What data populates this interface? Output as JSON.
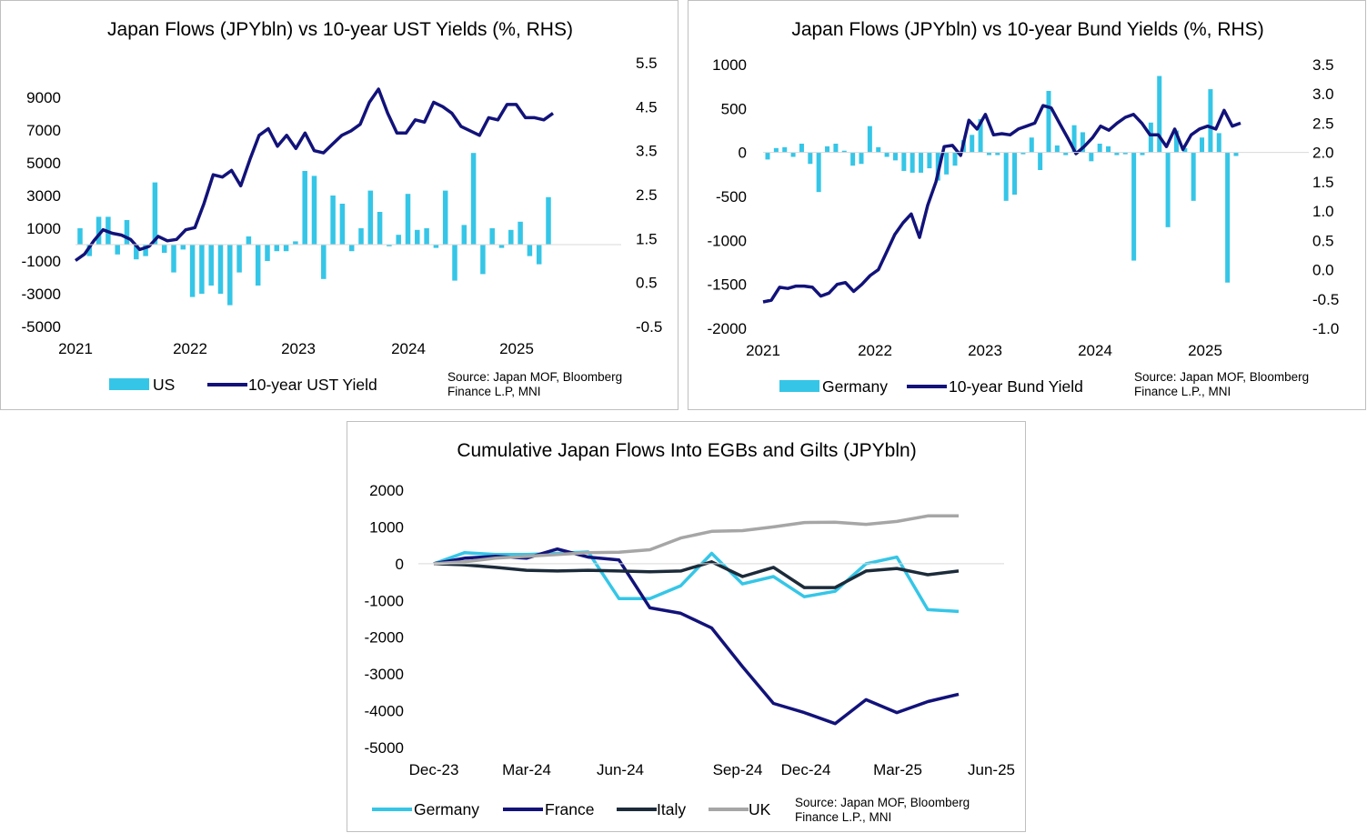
{
  "colors": {
    "cyan": "#35c6e7",
    "navy": "#12127a",
    "dark": "#1c2b3a",
    "grey": "#a6a6a6",
    "axis": "#d9d9d9"
  },
  "charts": [
    {
      "id": "us",
      "type": "bar+line",
      "title": "Japan Flows (JPYbln) vs 10-year UST Yields (%, RHS)",
      "x_labels": [
        "2021",
        "2022",
        "2023",
        "2024",
        "2025"
      ],
      "x_start": 2021.0,
      "x_end": 2026.0,
      "left_ticks": [
        "9000",
        "7000",
        "5000",
        "3000",
        "1000",
        "-1000",
        "-3000",
        "-5000"
      ],
      "right_ticks": [
        "5.5",
        "4.5",
        "3.5",
        "2.5",
        "1.5",
        "0.5",
        "-0.5"
      ],
      "ylim_left": [
        -5000,
        10000
      ],
      "ylim_right": [
        -0.5,
        5.5
      ],
      "bar_series": {
        "name": "US",
        "values": [
          1000,
          -700,
          1700,
          1700,
          -600,
          1500,
          -900,
          -700,
          3800,
          -500,
          -1700,
          -300,
          -3200,
          -3000,
          -2500,
          -3000,
          -3700,
          -1700,
          500,
          -2500,
          -1000,
          -400,
          -400,
          200,
          4500,
          4200,
          -2100,
          3000,
          2500,
          -400,
          1000,
          3300,
          2000,
          -100,
          600,
          3100,
          900,
          1000,
          -200,
          3300,
          -2200,
          1200,
          5600,
          -1800,
          1000,
          -200,
          900,
          1400,
          -700,
          -1200,
          2900
        ]
      },
      "line_series": {
        "name": "10-year UST Yield",
        "values": [
          1.0,
          1.15,
          1.45,
          1.7,
          1.62,
          1.58,
          1.48,
          1.25,
          1.32,
          1.55,
          1.45,
          1.48,
          1.7,
          1.75,
          2.3,
          2.95,
          2.9,
          3.05,
          2.7,
          3.3,
          3.85,
          4.0,
          3.6,
          3.85,
          3.55,
          3.9,
          3.5,
          3.45,
          3.65,
          3.85,
          3.95,
          4.1,
          4.6,
          4.9,
          4.35,
          3.9,
          3.9,
          4.2,
          4.15,
          4.6,
          4.5,
          4.35,
          4.05,
          3.95,
          3.85,
          4.25,
          4.2,
          4.55,
          4.55,
          4.25,
          4.25,
          4.2,
          4.35
        ]
      },
      "legend": {
        "bar": "US",
        "line": "10-year UST Yield"
      },
      "source": [
        "Source: Japan MOF, Bloomberg",
        "Finance L.P, MNI"
      ]
    },
    {
      "id": "de",
      "type": "bar+line",
      "title": "Japan Flows (JPYbln) vs 10-year Bund Yields (%, RHS)",
      "x_labels": [
        "2021",
        "2022",
        "2023",
        "2024",
        "2025"
      ],
      "x_start": 2021.0,
      "x_end": 2026.0,
      "left_ticks": [
        "1000",
        "500",
        "0",
        "-500",
        "-1000",
        "-1500",
        "-2000"
      ],
      "right_ticks": [
        "3.5",
        "3.0",
        "2.5",
        "2.0",
        "1.5",
        "1.0",
        "0.5",
        "0.0",
        "-0.5",
        "-1.0"
      ],
      "ylim_left": [
        -2000,
        1000
      ],
      "ylim_right": [
        -1.0,
        3.5
      ],
      "bar_series": {
        "name": "Germany",
        "values": [
          -80,
          50,
          60,
          -50,
          100,
          -130,
          -450,
          70,
          100,
          20,
          -150,
          -130,
          300,
          60,
          -50,
          -90,
          -210,
          -230,
          -230,
          -180,
          -320,
          -250,
          -150,
          140,
          200,
          380,
          -30,
          -30,
          -550,
          -480,
          -20,
          170,
          -200,
          700,
          80,
          -30,
          310,
          230,
          -100,
          100,
          70,
          -30,
          -20,
          -1230,
          -30,
          340,
          870,
          -850,
          250,
          50,
          -550,
          170,
          720,
          220,
          -1480,
          -40
        ]
      },
      "line_series": {
        "name": "10-year Bund Yield",
        "values": [
          -0.55,
          -0.52,
          -0.3,
          -0.32,
          -0.28,
          -0.28,
          -0.3,
          -0.45,
          -0.4,
          -0.25,
          -0.22,
          -0.37,
          -0.25,
          -0.1,
          0.0,
          0.3,
          0.6,
          0.8,
          0.95,
          0.55,
          1.1,
          1.5,
          2.1,
          2.12,
          1.95,
          2.55,
          2.4,
          2.65,
          2.3,
          2.32,
          2.3,
          2.4,
          2.45,
          2.5,
          2.8,
          2.76,
          2.5,
          2.25,
          1.98,
          2.1,
          2.25,
          2.45,
          2.38,
          2.5,
          2.6,
          2.65,
          2.5,
          2.3,
          2.3,
          2.1,
          2.4,
          2.05,
          2.3,
          2.4,
          2.45,
          2.4,
          2.72,
          2.45,
          2.5
        ]
      },
      "legend": {
        "bar": "Germany",
        "line": "10-year Bund Yield"
      },
      "source": [
        "Source: Japan MOF, Bloomberg",
        "Finance L.P., MNI"
      ]
    },
    {
      "id": "cum",
      "type": "line",
      "title": "Cumulative Japan Flows Into EGBs and Gilts (JPYbln)",
      "x_labels": [
        "Dec-23",
        "Mar-24",
        "Jun-24",
        "Sep-24",
        "Dec-24",
        "Mar-25",
        "Jun-25"
      ],
      "left_ticks": [
        "2000",
        "1000",
        "0",
        "-1000",
        "-2000",
        "-3000",
        "-4000",
        "-5000"
      ],
      "ylim": [
        -5000,
        2000
      ],
      "series": [
        {
          "name": "Germany",
          "color": "cyan",
          "values": [
            0,
            300,
            250,
            250,
            280,
            320,
            -950,
            -950,
            -600,
            280,
            -550,
            -350,
            -900,
            -750,
            0,
            180,
            -1250,
            -1300
          ]
        },
        {
          "name": "France",
          "color": "navy",
          "values": [
            0,
            150,
            200,
            150,
            400,
            180,
            100,
            -1200,
            -1350,
            -1750,
            -2800,
            -3800,
            -4050,
            -4350,
            -3700,
            -4050,
            -3750,
            -3550
          ]
        },
        {
          "name": "Italy",
          "color": "dark",
          "values": [
            0,
            -30,
            -100,
            -180,
            -200,
            -180,
            -200,
            -220,
            -200,
            50,
            -350,
            -100,
            -650,
            -650,
            -200,
            -130,
            -300,
            -200
          ]
        },
        {
          "name": "UK",
          "color": "grey",
          "values": [
            0,
            50,
            150,
            200,
            250,
            300,
            310,
            380,
            700,
            880,
            900,
            1000,
            1120,
            1130,
            1070,
            1150,
            1300,
            1300
          ]
        }
      ],
      "legend": [
        "Germany",
        "France",
        "Italy",
        "UK"
      ],
      "source": [
        "Source: Japan MOF, Bloomberg",
        "Finance L.P., MNI"
      ]
    }
  ]
}
